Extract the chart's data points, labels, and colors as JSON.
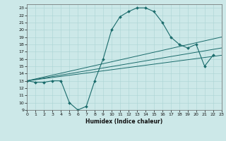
{
  "xlabel": "Humidex (Indice chaleur)",
  "bg_color": "#cce8e8",
  "line_color": "#1a6b6b",
  "grid_color": "#aad4d4",
  "series": [
    {
      "x": [
        0,
        1,
        2,
        3,
        4,
        5,
        6,
        7,
        8,
        9,
        10,
        11,
        12,
        13,
        14,
        15,
        16,
        17,
        18,
        19,
        20,
        21,
        22
      ],
      "y": [
        13,
        12.8,
        12.8,
        13,
        13,
        10,
        9,
        9.5,
        13,
        16,
        20,
        21.8,
        22.5,
        23,
        23,
        22.5,
        21,
        19,
        18,
        17.5,
        18,
        15,
        16.5
      ],
      "marker": true
    },
    {
      "x": [
        0,
        23
      ],
      "y": [
        13,
        19
      ],
      "marker": false
    },
    {
      "x": [
        0,
        23
      ],
      "y": [
        13,
        17.5
      ],
      "marker": false
    },
    {
      "x": [
        0,
        23
      ],
      "y": [
        13,
        16.5
      ],
      "marker": false
    }
  ],
  "xlim": [
    0,
    23
  ],
  "ylim": [
    9,
    23.5
  ],
  "xticks": [
    0,
    1,
    2,
    3,
    4,
    5,
    6,
    7,
    8,
    9,
    10,
    11,
    12,
    13,
    14,
    15,
    16,
    17,
    18,
    19,
    20,
    21,
    22,
    23
  ],
  "yticks": [
    9,
    10,
    11,
    12,
    13,
    14,
    15,
    16,
    17,
    18,
    19,
    20,
    21,
    22,
    23
  ]
}
